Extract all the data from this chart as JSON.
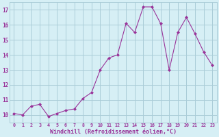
{
  "x": [
    0,
    1,
    2,
    3,
    4,
    5,
    6,
    7,
    8,
    9,
    10,
    11,
    12,
    13,
    14,
    15,
    16,
    17,
    18,
    19,
    20,
    21,
    22,
    23
  ],
  "y": [
    10.1,
    10.0,
    10.6,
    10.7,
    9.9,
    10.1,
    10.3,
    10.4,
    11.1,
    11.5,
    13.0,
    13.8,
    14.0,
    16.1,
    15.5,
    17.2,
    17.2,
    16.1,
    13.0,
    15.5,
    16.5,
    15.4,
    14.2,
    13.3
  ],
  "line_color": "#993399",
  "marker_color": "#993399",
  "bg_color": "#d6eff5",
  "grid_color": "#aaccd8",
  "tick_color": "#993399",
  "xlabel": "Windchill (Refroidissement éolien,°C)",
  "ylabel_ticks": [
    10,
    11,
    12,
    13,
    14,
    15,
    16,
    17
  ],
  "xlim": [
    -0.5,
    23.5
  ],
  "ylim": [
    9.5,
    17.5
  ],
  "xticks": [
    0,
    1,
    2,
    3,
    4,
    5,
    6,
    7,
    8,
    9,
    10,
    11,
    12,
    13,
    14,
    15,
    16,
    17,
    18,
    19,
    20,
    21,
    22,
    23
  ],
  "figwidth": 3.2,
  "figheight": 2.0,
  "dpi": 100
}
